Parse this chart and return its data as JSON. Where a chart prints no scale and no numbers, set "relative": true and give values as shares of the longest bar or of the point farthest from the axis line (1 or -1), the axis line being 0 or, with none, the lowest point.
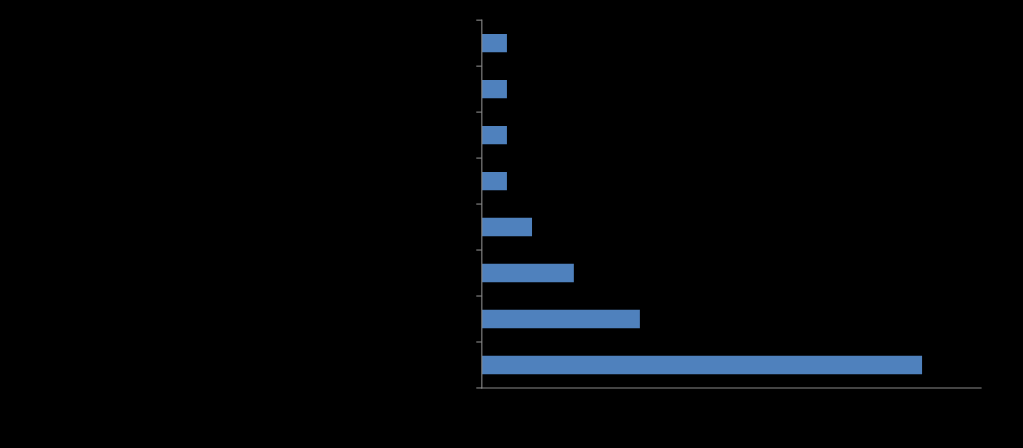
{
  "chart_data": {
    "type": "bar",
    "orientation": "horizontal",
    "relative": true,
    "categories": [
      null,
      null,
      null,
      null,
      null,
      null,
      null,
      null
    ],
    "series": [
      {
        "color": "#4f81bd",
        "values": [
          0.057,
          0.057,
          0.057,
          0.057,
          0.114,
          0.209,
          0.359,
          1
        ]
      }
    ],
    "grid": false,
    "legend": false
  }
}
